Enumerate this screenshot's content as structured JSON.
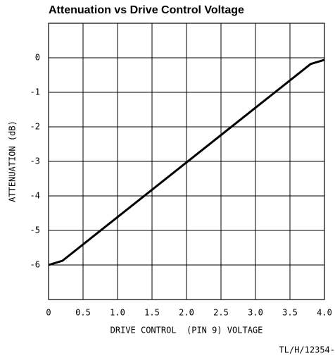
{
  "chart_data": {
    "type": "line",
    "title": "Attenuation vs Drive Control Voltage",
    "x_label": "DRIVE CONTROL  (PIN 9) VOLTAGE",
    "y_label": "ATTENUATION (dB)",
    "footnote": "TL/H/12354-",
    "x": [
      0,
      0.2,
      3.8,
      4.0
    ],
    "series": [
      {
        "color": "#000000",
        "values": [
          -6,
          -5.88,
          -0.18,
          -0.06
        ]
      }
    ],
    "xlim": [
      0,
      4
    ],
    "xticks": [
      0,
      0.5,
      {
        "value": 1,
        "label": "1.0"
      },
      1.5,
      {
        "value": 2,
        "label": "2.0"
      },
      2.5,
      {
        "value": 3,
        "label": "3.0"
      },
      3.5,
      {
        "value": 4,
        "label": "4.0"
      }
    ],
    "ylim": [
      -7,
      1
    ],
    "yticks": [
      0,
      -1,
      -2,
      -3,
      -4,
      -5,
      -6
    ],
    "grid": true
  }
}
